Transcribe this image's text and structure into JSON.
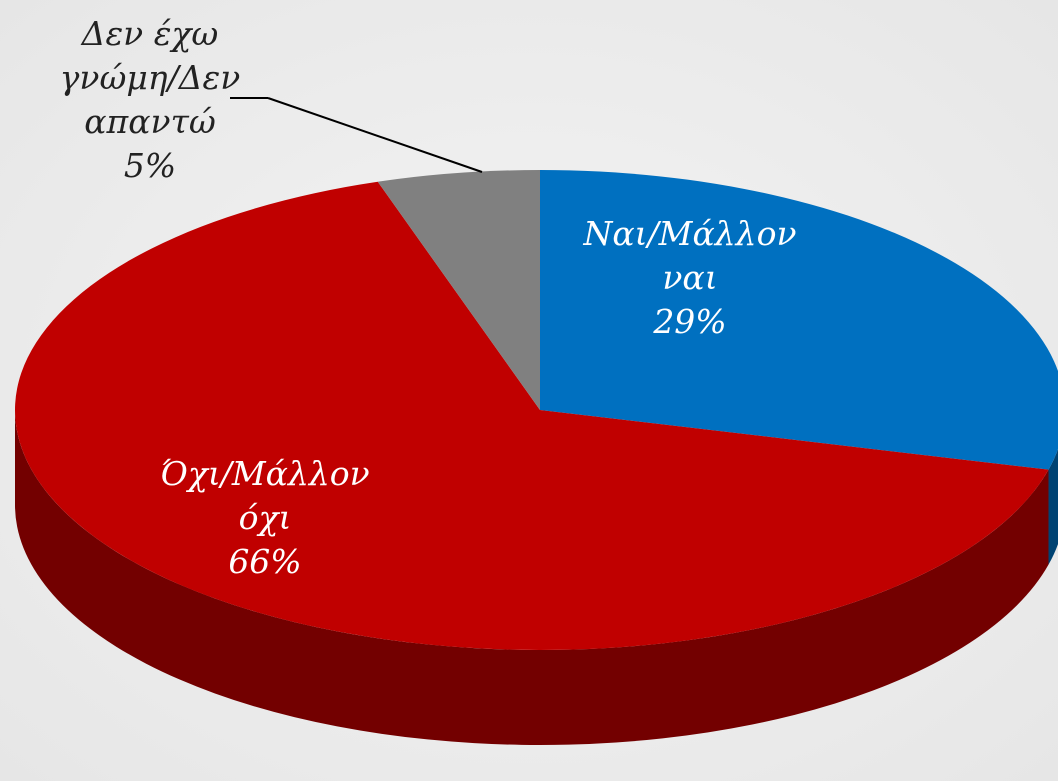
{
  "chart_data": {
    "type": "pie",
    "categories": [
      "Ναι/Μάλλον ναι",
      "Όχι/Μάλλον όχι",
      "Δεν έχω γνώμη/Δεν απαντώ"
    ],
    "values": [
      29,
      66,
      5
    ],
    "value_labels": [
      "29%",
      "66%",
      "5%"
    ],
    "colors": [
      "#0070c0",
      "#c00000",
      "#808080"
    ]
  }
}
